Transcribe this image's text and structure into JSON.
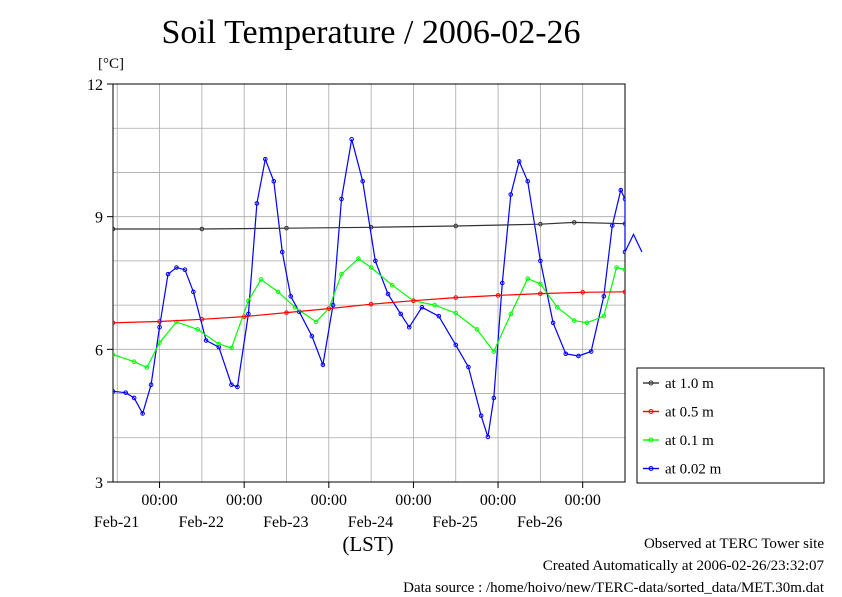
{
  "title": "Soil Temperature / 2006-02-26",
  "ylabel_unit": "[°C]",
  "xlabel": "(LST)",
  "footer": {
    "observed": "Observed at TERC Tower site",
    "created": "Created Automatically at 2006-02-26/23:32:07",
    "source": "Data source : /home/hoivo/new/TERC-data/sorted_data/MET.30m.dat"
  },
  "colors": {
    "depth_1_0": "#333333",
    "depth_0_5": "#ff0000",
    "depth_0_1": "#00ff00",
    "depth_0_02": "#0000ff"
  },
  "chart_data": {
    "type": "line",
    "x_unit": "days from Feb-20 00:00 LST",
    "xlim": [
      0.45,
      6.5
    ],
    "ylim": [
      3,
      12
    ],
    "yticks": [
      "3",
      "6",
      "9",
      "12"
    ],
    "xtick_labels": [
      {
        "x": 1,
        "time": "00:00",
        "date": "Feb-21"
      },
      {
        "x": 2,
        "time": "00:00",
        "date": "Feb-22"
      },
      {
        "x": 3,
        "time": "00:00",
        "date": "Feb-23"
      },
      {
        "x": 4,
        "time": "00:00",
        "date": "Feb-24"
      },
      {
        "x": 5,
        "time": "00:00",
        "date": "Feb-25"
      },
      {
        "x": 6,
        "time": "00:00",
        "date": "Feb-26"
      }
    ],
    "grid": true,
    "legend_position": "right",
    "series": [
      {
        "name": "at 1.0 m",
        "color": "#333333",
        "points": [
          [
            0.45,
            8.72
          ],
          [
            1.5,
            8.72
          ],
          [
            2.5,
            8.74
          ],
          [
            3.5,
            8.76
          ],
          [
            4.5,
            8.79
          ],
          [
            5.5,
            8.83
          ],
          [
            5.9,
            8.87
          ],
          [
            6.5,
            8.84
          ]
        ]
      },
      {
        "name": "at 0.5 m",
        "color": "#ff0000",
        "points": [
          [
            0.45,
            6.6
          ],
          [
            1.0,
            6.63
          ],
          [
            1.5,
            6.68
          ],
          [
            2.0,
            6.74
          ],
          [
            2.5,
            6.83
          ],
          [
            3.0,
            6.92
          ],
          [
            3.5,
            7.02
          ],
          [
            4.0,
            7.1
          ],
          [
            4.5,
            7.17
          ],
          [
            5.0,
            7.22
          ],
          [
            5.5,
            7.26
          ],
          [
            6.0,
            7.29
          ],
          [
            6.5,
            7.3
          ]
        ]
      },
      {
        "name": "at 0.1 m",
        "color": "#00ff00",
        "points": [
          [
            0.45,
            5.88
          ],
          [
            0.7,
            5.72
          ],
          [
            0.85,
            5.59
          ],
          [
            1.0,
            6.15
          ],
          [
            1.2,
            6.62
          ],
          [
            1.45,
            6.45
          ],
          [
            1.7,
            6.12
          ],
          [
            1.85,
            6.03
          ],
          [
            2.05,
            7.1
          ],
          [
            2.2,
            7.58
          ],
          [
            2.4,
            7.3
          ],
          [
            2.6,
            6.95
          ],
          [
            2.85,
            6.62
          ],
          [
            3.0,
            6.92
          ],
          [
            3.15,
            7.7
          ],
          [
            3.35,
            8.05
          ],
          [
            3.5,
            7.85
          ],
          [
            3.75,
            7.45
          ],
          [
            4.0,
            7.1
          ],
          [
            4.25,
            7.0
          ],
          [
            4.5,
            6.82
          ],
          [
            4.75,
            6.45
          ],
          [
            4.95,
            5.95
          ],
          [
            5.15,
            6.8
          ],
          [
            5.35,
            7.6
          ],
          [
            5.5,
            7.48
          ],
          [
            5.7,
            6.95
          ],
          [
            5.9,
            6.65
          ],
          [
            6.05,
            6.6
          ],
          [
            6.25,
            6.75
          ],
          [
            6.4,
            7.85
          ],
          [
            6.5,
            7.8
          ]
        ]
      },
      {
        "name": "at 0.02 m",
        "color": "#0000ff",
        "points": [
          [
            0.45,
            5.05
          ],
          [
            0.6,
            5.02
          ],
          [
            0.7,
            4.9
          ],
          [
            0.8,
            4.55
          ],
          [
            0.9,
            5.2
          ],
          [
            1.0,
            6.5
          ],
          [
            1.1,
            7.7
          ],
          [
            1.2,
            7.85
          ],
          [
            1.3,
            7.8
          ],
          [
            1.4,
            7.3
          ],
          [
            1.55,
            6.2
          ],
          [
            1.7,
            6.05
          ],
          [
            1.85,
            5.2
          ],
          [
            1.92,
            5.15
          ],
          [
            2.05,
            6.8
          ],
          [
            2.15,
            9.3
          ],
          [
            2.25,
            10.3
          ],
          [
            2.35,
            9.8
          ],
          [
            2.45,
            8.2
          ],
          [
            2.55,
            7.2
          ],
          [
            2.65,
            6.85
          ],
          [
            2.8,
            6.3
          ],
          [
            2.93,
            5.65
          ],
          [
            3.05,
            7.0
          ],
          [
            3.15,
            9.4
          ],
          [
            3.27,
            10.75
          ],
          [
            3.4,
            9.8
          ],
          [
            3.55,
            8.0
          ],
          [
            3.7,
            7.25
          ],
          [
            3.85,
            6.8
          ],
          [
            3.95,
            6.5
          ],
          [
            4.1,
            6.95
          ],
          [
            4.3,
            6.75
          ],
          [
            4.5,
            6.1
          ],
          [
            4.65,
            5.6
          ],
          [
            4.8,
            4.5
          ],
          [
            4.88,
            4.02
          ],
          [
            4.95,
            4.9
          ],
          [
            5.05,
            7.5
          ],
          [
            5.15,
            9.5
          ],
          [
            5.25,
            10.25
          ],
          [
            5.35,
            9.8
          ],
          [
            5.5,
            8.0
          ],
          [
            5.65,
            6.6
          ],
          [
            5.8,
            5.9
          ],
          [
            5.95,
            5.85
          ],
          [
            6.1,
            5.95
          ],
          [
            6.25,
            7.2
          ],
          [
            6.35,
            8.8
          ],
          [
            6.45,
            9.6
          ],
          [
            6.5,
            9.4
          ],
          [
            6.6,
            8.6
          ],
          [
            6.7,
            8.2
          ],
          [
            6.5,
            8.2
          ]
        ]
      }
    ]
  }
}
